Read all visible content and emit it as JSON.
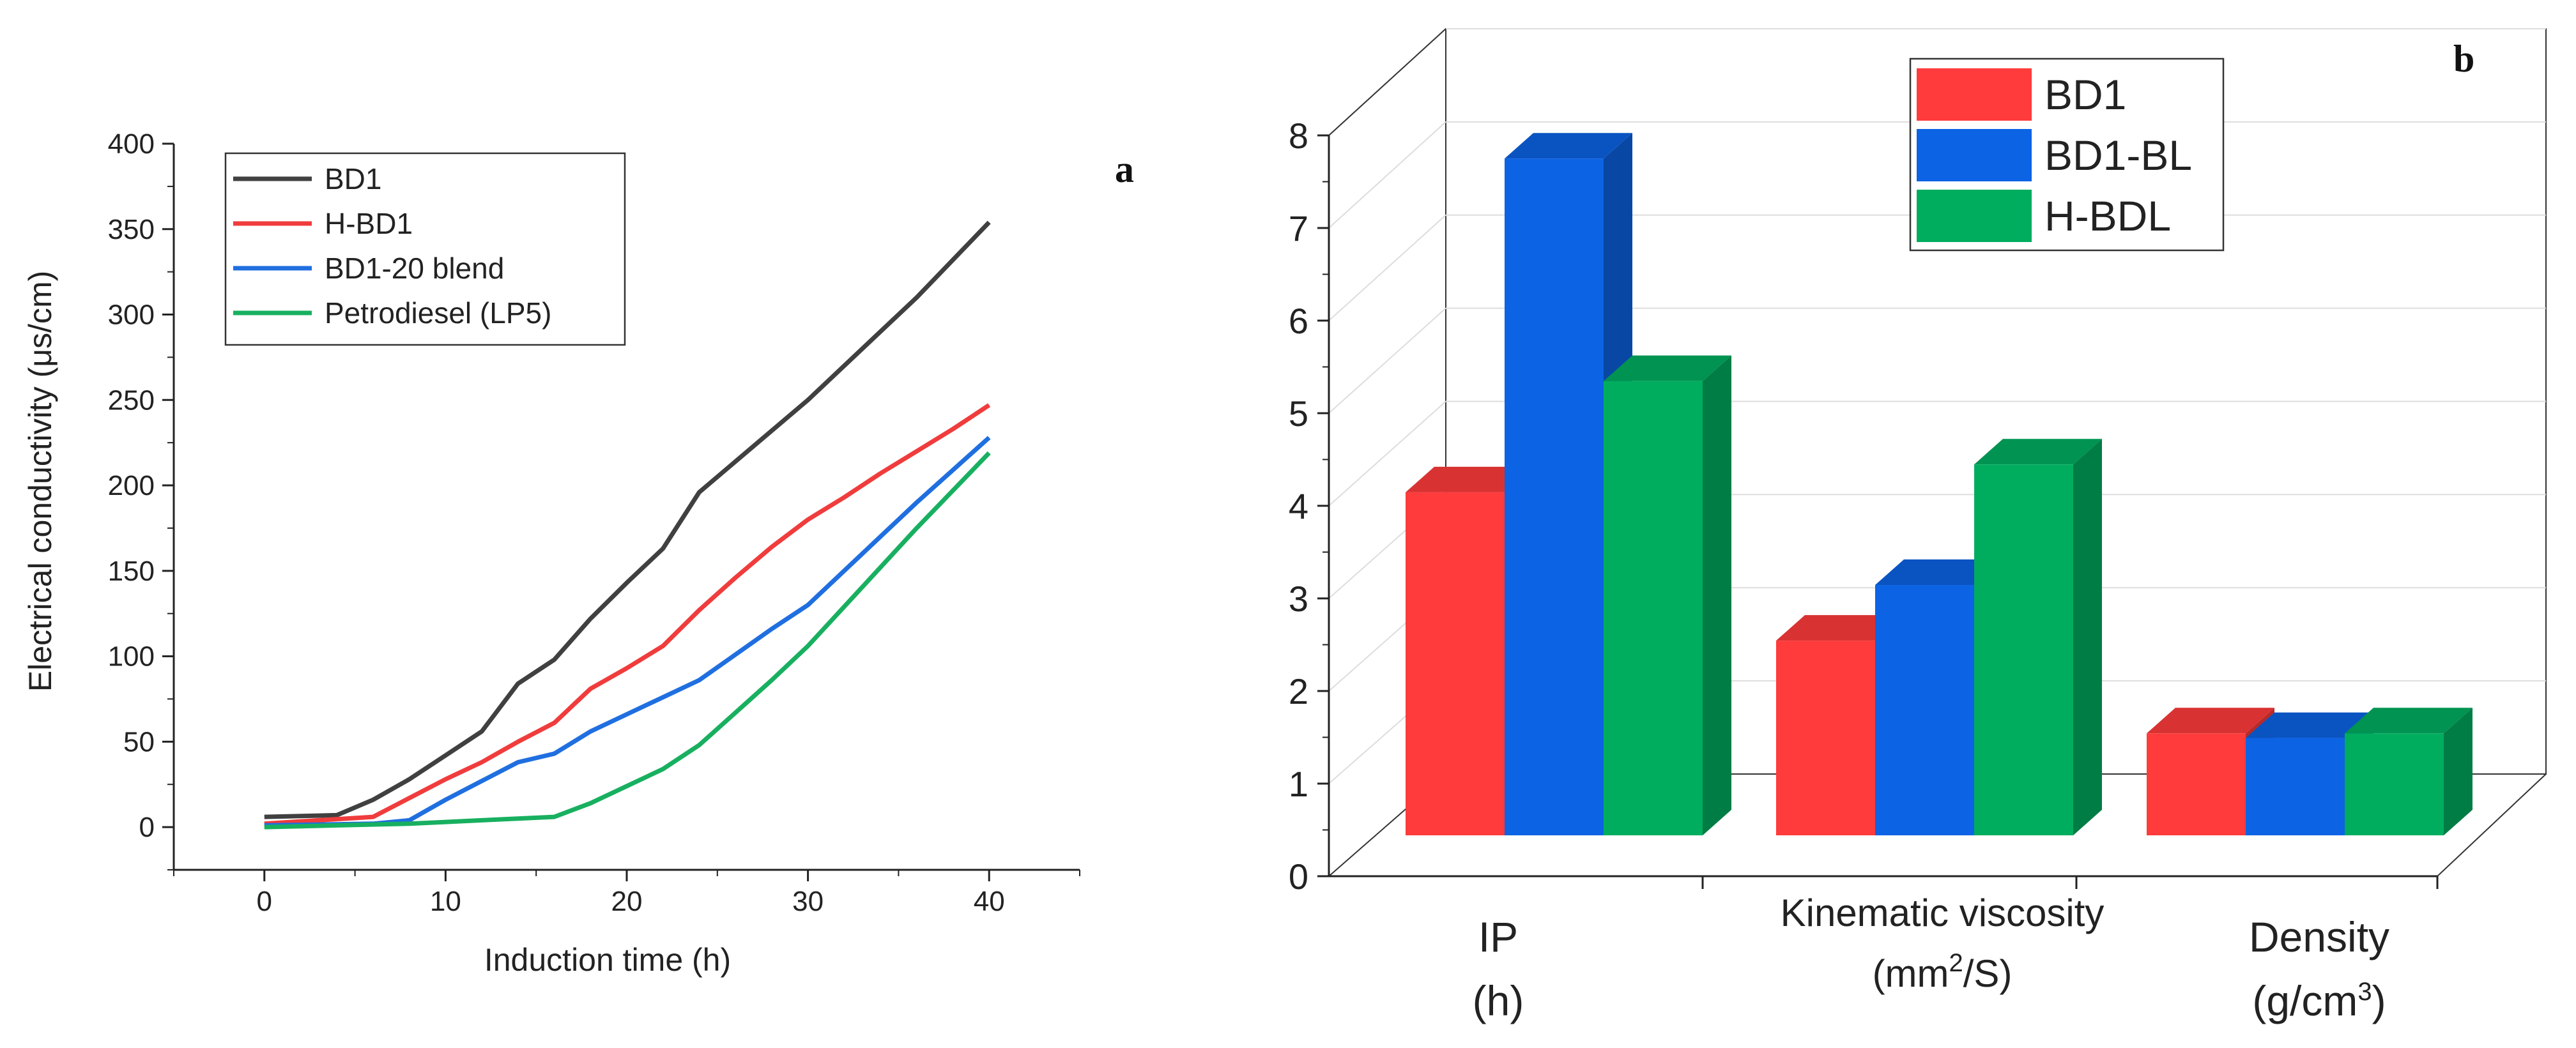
{
  "chart_data": [
    {
      "panel_label": "a",
      "type": "line",
      "xlabel": "Induction time (h)",
      "ylabel": "Electrical conductivity (μs/cm)",
      "xlim": [
        -5,
        45
      ],
      "ylim": [
        -25,
        400
      ],
      "xticks": [
        "0",
        "10",
        "20",
        "30",
        "40"
      ],
      "yticks": [
        "0",
        "50",
        "100",
        "150",
        "200",
        "250",
        "300",
        "350",
        "400"
      ],
      "legend_position": "top-left",
      "series": [
        {
          "name": "BD1",
          "color": "#404040",
          "x": [
            0,
            4,
            6,
            8,
            10,
            12,
            14,
            16,
            18,
            20,
            22,
            24,
            26,
            28,
            30,
            32,
            34,
            36,
            38,
            40
          ],
          "y": [
            6,
            7,
            16,
            28,
            42,
            56,
            84,
            98,
            122,
            143,
            163,
            196,
            214,
            232,
            250,
            270,
            290,
            310,
            332,
            354
          ]
        },
        {
          "name": "H-BD1",
          "color": "#f03c3c",
          "x": [
            0,
            6,
            8,
            10,
            12,
            14,
            16,
            18,
            20,
            22,
            24,
            26,
            28,
            30,
            32,
            34,
            36,
            38,
            40
          ],
          "y": [
            2,
            6,
            17,
            28,
            38,
            50,
            61,
            81,
            93,
            106,
            127,
            146,
            164,
            180,
            193,
            207,
            220,
            233,
            247
          ]
        },
        {
          "name": "BD1-20 blend",
          "color": "#1f6fe0",
          "x": [
            0,
            6,
            8,
            10,
            12,
            14,
            16,
            18,
            20,
            22,
            24,
            26,
            28,
            30,
            32,
            34,
            36,
            38,
            40
          ],
          "y": [
            1,
            2,
            4,
            16,
            27,
            38,
            43,
            56,
            66,
            76,
            86,
            101,
            116,
            130,
            150,
            170,
            190,
            209,
            228
          ]
        },
        {
          "name": "Petrodiesel (LP5)",
          "color": "#18b060",
          "x": [
            0,
            4,
            8,
            10,
            12,
            14,
            16,
            18,
            20,
            22,
            24,
            26,
            28,
            30,
            32,
            34,
            36,
            38,
            40
          ],
          "y": [
            0,
            1,
            2,
            3,
            4,
            5,
            6,
            14,
            24,
            34,
            48,
            67,
            86,
            106,
            129,
            152,
            175,
            197,
            219
          ]
        }
      ]
    },
    {
      "panel_label": "b",
      "type": "bar",
      "style": "3d",
      "ylim": [
        0,
        8
      ],
      "yticks": [
        "0",
        "1",
        "2",
        "3",
        "4",
        "5",
        "6",
        "7",
        "8"
      ],
      "categories": [
        {
          "line1": "IP",
          "line2": "(h)",
          "line2_sup": ""
        },
        {
          "line1": "Kinematic viscosity",
          "line2": "(mm",
          "line2_sup": "2",
          "line2_tail": "/S)"
        },
        {
          "line1": "Density",
          "line2": "(g/cm",
          "line2_sup": "3",
          "line2_tail": ")"
        }
      ],
      "legend_position": "top-center",
      "series": [
        {
          "name": "BD1",
          "color": "#ff3b3b",
          "values": [
            3.7,
            2.1,
            1.1
          ]
        },
        {
          "name": "BD1-BL",
          "color": "#0c63e4",
          "values": [
            7.3,
            2.7,
            1.05
          ]
        },
        {
          "name": "H-BDL",
          "color": "#00ad5f",
          "values": [
            4.9,
            4.0,
            1.1
          ]
        }
      ]
    }
  ]
}
